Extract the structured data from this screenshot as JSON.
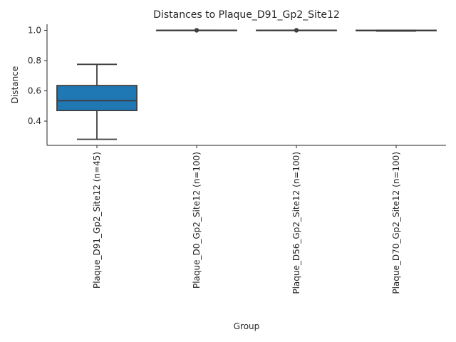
{
  "chart_data": {
    "type": "box",
    "title": "Distances to Plaque_D91_Gp2_Site12",
    "xlabel": "Group",
    "ylabel": "Distance",
    "ylim": [
      0.24,
      1.04
    ],
    "yticks": [
      0.4,
      0.6,
      0.8,
      1.0
    ],
    "ytick_labels": [
      "0.4",
      "0.6",
      "0.8",
      "1.0"
    ],
    "grid": false,
    "box_color": "#1f77b4",
    "line_color": "#3f3f3f",
    "categories": [
      "Plaque_D91_Gp2_Site12 (n=45)",
      "Plaque_D0_Gp2_Site12 (n=100)",
      "Plaque_D56_Gp2_Site12 (n=100)",
      "Plaque_D70_Gp2_Site12 (n=100)"
    ],
    "boxes": [
      {
        "whisker_low": 0.28,
        "q1": 0.47,
        "median": 0.535,
        "q3": 0.635,
        "whisker_high": 0.775,
        "outliers": []
      },
      {
        "whisker_low": 1.0,
        "q1": 1.0,
        "median": 1.0,
        "q3": 1.0,
        "whisker_high": 1.0,
        "outliers": [
          1.0
        ]
      },
      {
        "whisker_low": 1.0,
        "q1": 1.0,
        "median": 1.0,
        "q3": 1.0,
        "whisker_high": 1.0,
        "outliers": [
          1.0
        ]
      },
      {
        "whisker_low": 0.995,
        "q1": 0.997,
        "median": 0.999,
        "q3": 1.0,
        "whisker_high": 1.0,
        "outliers": []
      }
    ]
  }
}
